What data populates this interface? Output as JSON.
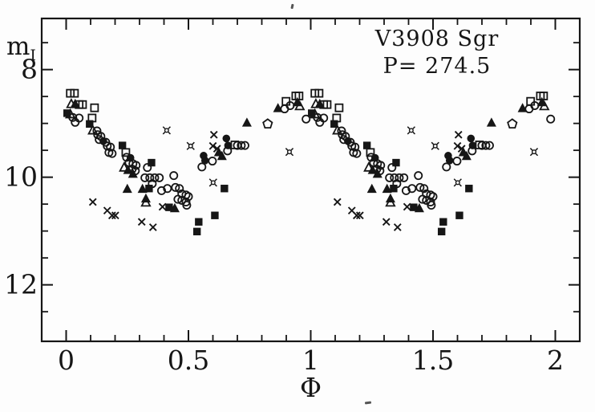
{
  "figure": {
    "title": "V3908 Sgr",
    "subtitle": "P= 274.5",
    "y_axis_label_main": "m",
    "y_axis_label_sub": "I",
    "x_axis_label": "Φ"
  },
  "chart_data": {
    "type": "scatter",
    "title": "V3908 Sgr",
    "subtitle": "P= 274.5",
    "xlabel": "Φ",
    "ylabel": "m_I",
    "xlim": [
      -0.1,
      2.1
    ],
    "ylim": [
      7.05,
      13.05
    ],
    "y_axis_inverted": true,
    "grid": false,
    "legend": "none",
    "phase_duplicated": true,
    "phase_note": "Light curve; every point [phase, magnitude] is plotted twice, at Φ and Φ+1",
    "x_major_ticks": {
      "values": [
        0,
        0.5,
        1,
        1.5,
        2
      ],
      "labels": [
        "0",
        "0.5",
        "1",
        "1.5",
        "2"
      ]
    },
    "x_minor_ticks": [
      0.1,
      0.2,
      0.3,
      0.4,
      0.6,
      0.7,
      0.8,
      0.9,
      1.1,
      1.2,
      1.3,
      1.4,
      1.6,
      1.7,
      1.8,
      1.9
    ],
    "y_major_ticks": {
      "values": [
        8,
        10,
        12
      ],
      "labels": [
        "8",
        "10",
        "12"
      ]
    },
    "y_minor_ticks": [
      7.5,
      8.5,
      9,
      9.5,
      10.5,
      11,
      11.5,
      12.5
    ],
    "series": [
      {
        "name": "open-circle",
        "marker": "circle-open",
        "points": [
          [
            0.027,
            8.89
          ],
          [
            0.053,
            8.9
          ],
          [
            0.037,
            8.98
          ],
          [
            0.126,
            9.14
          ],
          [
            0.129,
            9.21
          ],
          [
            0.142,
            9.24
          ],
          [
            0.135,
            9.3
          ],
          [
            0.162,
            9.35
          ],
          [
            0.168,
            9.42
          ],
          [
            0.181,
            9.44
          ],
          [
            0.175,
            9.54
          ],
          [
            0.188,
            9.56
          ],
          [
            0.247,
            9.63
          ],
          [
            0.257,
            9.73
          ],
          [
            0.273,
            9.75
          ],
          [
            0.286,
            9.78
          ],
          [
            0.27,
            9.85
          ],
          [
            0.283,
            9.88
          ],
          [
            0.332,
            9.82
          ],
          [
            0.322,
            10.01
          ],
          [
            0.342,
            10.01
          ],
          [
            0.362,
            10.01
          ],
          [
            0.381,
            10.01
          ],
          [
            0.352,
            10.12
          ],
          [
            0.39,
            10.25
          ],
          [
            0.44,
            9.97
          ],
          [
            0.414,
            10.21
          ],
          [
            0.447,
            10.19
          ],
          [
            0.463,
            10.21
          ],
          [
            0.473,
            10.31
          ],
          [
            0.49,
            10.33
          ],
          [
            0.5,
            10.36
          ],
          [
            0.457,
            10.41
          ],
          [
            0.473,
            10.43
          ],
          [
            0.49,
            10.46
          ],
          [
            0.493,
            10.52
          ],
          [
            0.555,
            9.81
          ],
          [
            0.598,
            9.7
          ],
          [
            0.66,
            9.51
          ],
          [
            0.7,
            9.41
          ],
          [
            0.716,
            9.41
          ],
          [
            0.731,
            9.41
          ],
          [
            0.893,
            8.73
          ],
          [
            0.916,
            8.67
          ],
          [
            0.981,
            8.92
          ]
        ]
      },
      {
        "name": "filled-circle",
        "marker": "circle-filled",
        "points": [
          [
            0.152,
            9.33
          ],
          [
            0.263,
            9.64
          ],
          [
            0.562,
            9.6
          ],
          [
            0.568,
            9.69
          ],
          [
            0.655,
            9.28
          ],
          [
            0.662,
            9.41
          ]
        ]
      },
      {
        "name": "open-square",
        "marker": "square-open",
        "points": [
          [
            0.017,
            8.44
          ],
          [
            0.034,
            8.44
          ],
          [
            0.053,
            8.65
          ],
          [
            0.067,
            8.65
          ],
          [
            0.116,
            8.71
          ],
          [
            0.106,
            8.9
          ],
          [
            0.244,
            9.54
          ],
          [
            0.69,
            9.4
          ],
          [
            0.899,
            8.59
          ],
          [
            0.939,
            8.49
          ],
          [
            0.952,
            8.49
          ]
        ]
      },
      {
        "name": "filled-square",
        "marker": "square-filled",
        "points": [
          [
            0.004,
            8.81
          ],
          [
            0.096,
            9.01
          ],
          [
            0.23,
            9.41
          ],
          [
            0.349,
            9.73
          ],
          [
            0.339,
            10.21
          ],
          [
            0.421,
            10.56
          ],
          [
            0.535,
            11.01
          ],
          [
            0.542,
            10.83
          ],
          [
            0.608,
            10.71
          ],
          [
            0.647,
            10.21
          ]
        ]
      },
      {
        "name": "open-triangle",
        "marker": "triangle-open",
        "points": [
          [
            0.021,
            8.64
          ],
          [
            0.017,
            8.83
          ],
          [
            0.109,
            9.13
          ],
          [
            0.237,
            9.82
          ],
          [
            0.326,
            10.47
          ],
          [
            0.955,
            8.68
          ]
        ]
      },
      {
        "name": "filled-triangle",
        "marker": "triangle-filled",
        "points": [
          [
            0.037,
            8.64
          ],
          [
            0.253,
            9.87
          ],
          [
            0.273,
            9.94
          ],
          [
            0.25,
            10.22
          ],
          [
            0.312,
            10.22
          ],
          [
            0.326,
            10.4
          ],
          [
            0.444,
            10.58
          ],
          [
            0.624,
            9.54
          ],
          [
            0.637,
            9.61
          ],
          [
            0.739,
            8.99
          ],
          [
            0.866,
            8.72
          ],
          [
            0.945,
            8.61
          ]
        ]
      },
      {
        "name": "cross",
        "marker": "cross",
        "points": [
          [
            0.109,
            10.46
          ],
          [
            0.168,
            10.62
          ],
          [
            0.188,
            10.71
          ],
          [
            0.201,
            10.71
          ],
          [
            0.309,
            10.83
          ],
          [
            0.355,
            10.93
          ],
          [
            0.394,
            10.55
          ],
          [
            0.604,
            9.21
          ],
          [
            0.6,
            9.42
          ],
          [
            0.617,
            9.47
          ]
        ]
      },
      {
        "name": "four-point-star",
        "marker": "star4",
        "points": [
          [
            0.411,
            9.13
          ],
          [
            0.509,
            9.42
          ],
          [
            0.601,
            10.1
          ],
          [
            0.913,
            9.53
          ]
        ]
      },
      {
        "name": "open-pentagon",
        "marker": "pentagon-open",
        "points": [
          [
            0.824,
            9.01
          ]
        ]
      }
    ]
  }
}
